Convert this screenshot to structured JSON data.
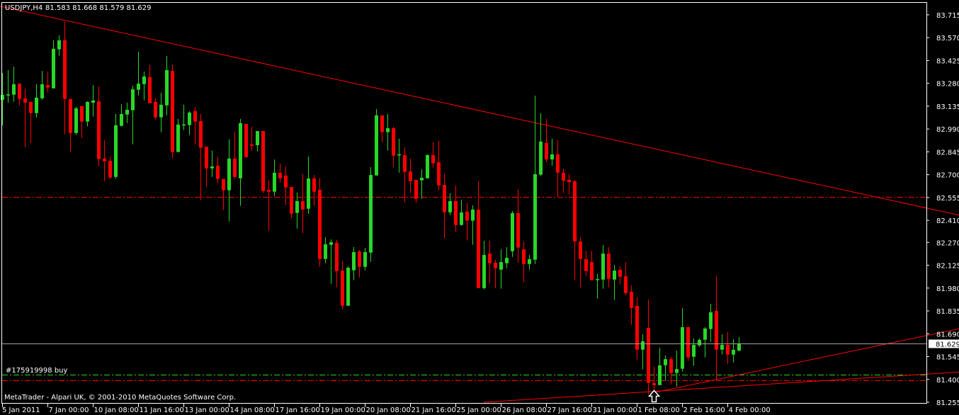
{
  "header": {
    "symbol_timeframe": "USDJPY,H4",
    "ohlc": "81.583 81.668 81.579 81.629"
  },
  "copyright": "MetaTrader - Alpari UK, © 2001-2010 MetaQuotes Software Corp.",
  "order_label": "#175919998 buy",
  "colors": {
    "background": "#000000",
    "bull": "#28d828",
    "bear": "#ff0000",
    "trendline": "#ff0000",
    "bid_line": "#a0a0a0",
    "axis": "#ffffff",
    "take_profit_line": "#28d828",
    "stop_line": "#ff0000"
  },
  "chart_data": {
    "type": "candlestick",
    "symbol": "USDJPY",
    "timeframe": "H4",
    "ylim": [
      81.255,
      83.715
    ],
    "y_ticks": [
      "83.715",
      "83.570",
      "83.425",
      "83.280",
      "83.135",
      "82.990",
      "82.845",
      "82.700",
      "82.555",
      "82.410",
      "82.270",
      "82.125",
      "81.980",
      "81.835",
      "81.690",
      "81.545",
      "81.400",
      "81.255"
    ],
    "x_tick_labels": [
      "5 Jan 2011",
      "7 Jan 00:00",
      "10 Jan 08:00",
      "11 Jan 16:00",
      "13 Jan 00:00",
      "14 Jan 08:00",
      "17 Jan 16:00",
      "19 Jan 00:00",
      "20 Jan 08:00",
      "21 Jan 16:00",
      "25 Jan 00:00",
      "26 Jan 08:00",
      "27 Jan 16:00",
      "31 Jan 00:00",
      "1 Feb 08:00",
      "2 Feb 16:00",
      "4 Feb 00:00"
    ],
    "bars_per_x_tick": 8,
    "current_price": "81.629",
    "candles_ohlc": [
      [
        83.175,
        83.346,
        83.013,
        83.207
      ],
      [
        83.203,
        83.364,
        83.157,
        83.21
      ],
      [
        83.208,
        83.386,
        83.163,
        83.274
      ],
      [
        83.278,
        83.278,
        83.14,
        83.181
      ],
      [
        83.184,
        83.247,
        82.875,
        83.157
      ],
      [
        83.162,
        83.162,
        82.902,
        83.091
      ],
      [
        83.091,
        83.274,
        83.064,
        83.189
      ],
      [
        83.185,
        83.359,
        83.176,
        83.274
      ],
      [
        83.269,
        83.355,
        83.221,
        83.253
      ],
      [
        83.248,
        83.553,
        83.248,
        83.499
      ],
      [
        83.496,
        83.584,
        83.455,
        83.553
      ],
      [
        83.553,
        83.67,
        82.956,
        83.181
      ],
      [
        83.18,
        83.18,
        82.844,
        82.965
      ],
      [
        82.965,
        83.13,
        82.952,
        83.121
      ],
      [
        83.135,
        83.135,
        82.934,
        83.037
      ],
      [
        83.037,
        83.166,
        83.006,
        83.162
      ],
      [
        83.157,
        83.269,
        83.068,
        83.171
      ],
      [
        83.166,
        83.26,
        82.754,
        82.799
      ],
      [
        82.802,
        82.919,
        82.659,
        82.785
      ],
      [
        82.788,
        82.815,
        82.673,
        82.682
      ],
      [
        82.686,
        83.085,
        82.673,
        83.013
      ],
      [
        83.01,
        83.148,
        83.006,
        83.085
      ],
      [
        83.082,
        83.157,
        83.028,
        83.112
      ],
      [
        83.109,
        83.265,
        82.893,
        83.242
      ],
      [
        83.239,
        83.481,
        83.203,
        83.278
      ],
      [
        83.275,
        83.355,
        83.172,
        83.323
      ],
      [
        83.319,
        83.4,
        83.154,
        83.154
      ],
      [
        83.162,
        83.184,
        83.05,
        83.064
      ],
      [
        83.064,
        83.22,
        82.97,
        83.144
      ],
      [
        83.14,
        83.454,
        83.077,
        83.364
      ],
      [
        83.359,
        83.4,
        82.803,
        82.844
      ],
      [
        82.844,
        83.054,
        82.844,
        83.018
      ],
      [
        83.015,
        83.144,
        82.983,
        83.019
      ],
      [
        83.015,
        83.103,
        82.952,
        83.094
      ],
      [
        83.103,
        83.13,
        82.893,
        83.037
      ],
      [
        83.04,
        83.085,
        82.538,
        82.871
      ],
      [
        82.878,
        82.878,
        82.623,
        82.74
      ],
      [
        82.74,
        82.853,
        82.686,
        82.752
      ],
      [
        82.757,
        82.812,
        82.646,
        82.673
      ],
      [
        82.673,
        82.673,
        82.475,
        82.601
      ],
      [
        82.601,
        82.925,
        82.403,
        82.802
      ],
      [
        82.802,
        82.974,
        82.673,
        82.686
      ],
      [
        82.677,
        83.054,
        82.502,
        83.027
      ],
      [
        83.022,
        83.022,
        82.806,
        82.812
      ],
      [
        82.892,
        83.004,
        82.853,
        82.884
      ],
      [
        82.887,
        82.977,
        82.848,
        82.977
      ],
      [
        82.977,
        82.977,
        82.583,
        82.596
      ],
      [
        82.604,
        82.667,
        82.345,
        82.592
      ],
      [
        82.592,
        82.797,
        82.565,
        82.712
      ],
      [
        82.712,
        82.77,
        82.65,
        82.677
      ],
      [
        82.694,
        82.752,
        82.506,
        82.619
      ],
      [
        82.622,
        82.622,
        82.425,
        82.452
      ],
      [
        82.457,
        82.586,
        82.358,
        82.532
      ],
      [
        82.532,
        82.703,
        82.327,
        82.479
      ],
      [
        82.484,
        82.815,
        82.452,
        82.676
      ],
      [
        82.676,
        82.698,
        82.502,
        82.592
      ],
      [
        82.604,
        82.68,
        82.115,
        82.165
      ],
      [
        82.165,
        82.303,
        82.138,
        82.258
      ],
      [
        82.255,
        82.289,
        82.007,
        82.271
      ],
      [
        82.267,
        82.285,
        81.985,
        82.088
      ],
      [
        82.091,
        82.15,
        81.845,
        81.868
      ],
      [
        81.868,
        82.118,
        81.868,
        82.109
      ],
      [
        82.093,
        82.24,
        82.03,
        82.208
      ],
      [
        82.213,
        82.222,
        82.048,
        82.115
      ],
      [
        82.115,
        82.235,
        82.093,
        82.208
      ],
      [
        82.205,
        82.748,
        82.147,
        82.698
      ],
      [
        82.695,
        83.117,
        82.695,
        83.076
      ],
      [
        83.076,
        83.076,
        82.907,
        82.97
      ],
      [
        82.97,
        83.085,
        82.853,
        82.995
      ],
      [
        82.995,
        83.004,
        82.749,
        82.821
      ],
      [
        82.824,
        82.928,
        82.713,
        82.829
      ],
      [
        82.824,
        82.874,
        82.524,
        82.718
      ],
      [
        82.721,
        82.802,
        82.583,
        82.659
      ],
      [
        82.667,
        82.667,
        82.52,
        82.547
      ],
      [
        82.664,
        82.734,
        82.547,
        82.68
      ],
      [
        82.677,
        82.829,
        82.677,
        82.824
      ],
      [
        82.824,
        82.905,
        82.745,
        82.772
      ],
      [
        82.779,
        82.914,
        82.601,
        82.632
      ],
      [
        82.635,
        82.707,
        82.295,
        82.461
      ],
      [
        82.461,
        82.582,
        82.443,
        82.532
      ],
      [
        82.532,
        82.631,
        82.336,
        82.381
      ],
      [
        82.381,
        82.541,
        82.376,
        82.46
      ],
      [
        82.465,
        82.519,
        82.282,
        82.408
      ],
      [
        82.408,
        82.505,
        82.255,
        82.478
      ],
      [
        82.478,
        82.658,
        81.98,
        81.98
      ],
      [
        81.98,
        82.28,
        81.971,
        82.19
      ],
      [
        82.199,
        82.28,
        82.012,
        82.138
      ],
      [
        82.141,
        82.159,
        81.98,
        82.106
      ],
      [
        82.097,
        82.226,
        81.976,
        82.145
      ],
      [
        82.138,
        82.24,
        82.106,
        82.172
      ],
      [
        82.214,
        82.469,
        82.178,
        82.456
      ],
      [
        82.456,
        82.604,
        82.142,
        82.237
      ],
      [
        82.226,
        82.276,
        82.016,
        82.133
      ],
      [
        82.133,
        82.19,
        82.097,
        82.163
      ],
      [
        82.16,
        83.202,
        82.133,
        82.703
      ],
      [
        82.7,
        83.09,
        82.691,
        82.91
      ],
      [
        82.901,
        83.054,
        82.779,
        82.797
      ],
      [
        82.797,
        82.928,
        82.757,
        82.829
      ],
      [
        82.829,
        82.919,
        82.56,
        82.713
      ],
      [
        82.712,
        82.739,
        82.583,
        82.662
      ],
      [
        82.667,
        82.703,
        82.574,
        82.653
      ],
      [
        82.658,
        82.667,
        82.03,
        82.277
      ],
      [
        82.276,
        82.303,
        81.985,
        82.165
      ],
      [
        82.163,
        82.217,
        82.057,
        82.088
      ],
      [
        82.145,
        82.217,
        82.03,
        82.03
      ],
      [
        82.03,
        82.07,
        81.913,
        82.037
      ],
      [
        82.034,
        82.253,
        81.976,
        82.199
      ],
      [
        82.199,
        82.24,
        81.985,
        82.039
      ],
      [
        82.034,
        82.127,
        81.904,
        82.091
      ],
      [
        82.096,
        82.118,
        82.003,
        82.052
      ],
      [
        82.055,
        82.145,
        81.935,
        81.949
      ],
      [
        81.956,
        81.997,
        81.747,
        81.854
      ],
      [
        81.867,
        81.921,
        81.526,
        81.589
      ],
      [
        81.589,
        81.687,
        81.463,
        81.642
      ],
      [
        81.727,
        81.907,
        81.306,
        81.378
      ],
      [
        81.376,
        81.481,
        81.321,
        81.364
      ],
      [
        81.364,
        81.601,
        81.364,
        81.489
      ],
      [
        81.49,
        81.552,
        81.391,
        81.529
      ],
      [
        81.529,
        81.543,
        81.369,
        81.441
      ],
      [
        81.441,
        81.583,
        81.355,
        81.466
      ],
      [
        81.468,
        81.853,
        81.45,
        81.732
      ],
      [
        81.732,
        81.732,
        81.517,
        81.54
      ],
      [
        81.544,
        81.66,
        81.486,
        81.619
      ],
      [
        81.616,
        81.66,
        81.607,
        81.651
      ],
      [
        81.652,
        81.732,
        81.54,
        81.723
      ],
      [
        81.72,
        81.88,
        81.639,
        81.826
      ],
      [
        81.835,
        82.055,
        81.396,
        81.589
      ],
      [
        81.589,
        81.687,
        81.558,
        81.619
      ],
      [
        81.619,
        81.7,
        81.499,
        81.558
      ],
      [
        81.558,
        81.655,
        81.508,
        81.588
      ],
      [
        81.583,
        81.668,
        81.579,
        81.629
      ]
    ],
    "horizontal_lines": [
      {
        "kind": "level",
        "price": 82.56,
        "color": "#ff0000",
        "style": "dash-dot"
      },
      {
        "kind": "take-profit",
        "price": 81.43,
        "color": "#28d828",
        "style": "dash-dot"
      },
      {
        "kind": "stop-loss",
        "price": 81.394,
        "color": "#ff0000",
        "style": "dash-dot"
      }
    ],
    "trendlines": [
      {
        "from": {
          "bar": 0,
          "price": 83.767
        },
        "to": {
          "bar": 130,
          "price": 82.748
        },
        "extend_right": true
      },
      {
        "from": {
          "bar": 85,
          "price": 81.255
        },
        "to": {
          "bar": 130,
          "price": 81.358
        },
        "extend_right": true
      },
      {
        "from": {
          "bar": 115,
          "price": 81.316
        },
        "to": {
          "bar": 130,
          "price": 81.429
        },
        "extend_right": true
      }
    ],
    "buy_arrow": {
      "bar": 115,
      "price": 81.321
    }
  }
}
